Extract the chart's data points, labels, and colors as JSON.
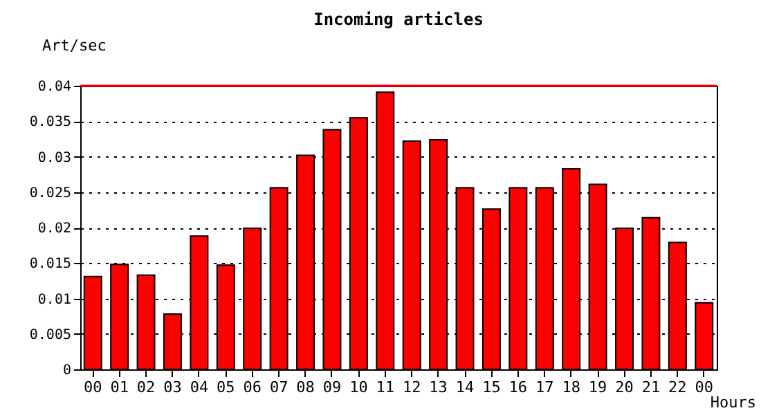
{
  "chart_data": {
    "type": "bar",
    "title": "Incoming articles",
    "xlabel": "Hours",
    "ylabel": "Art/sec",
    "categories": [
      "00",
      "01",
      "02",
      "03",
      "04",
      "05",
      "06",
      "07",
      "08",
      "09",
      "10",
      "11",
      "12",
      "13",
      "14",
      "15",
      "16",
      "17",
      "18",
      "19",
      "20",
      "21",
      "22",
      "00"
    ],
    "values": [
      0.0131,
      0.0148,
      0.0133,
      0.0078,
      0.0188,
      0.0147,
      0.0199,
      0.0256,
      0.0302,
      0.0338,
      0.0355,
      0.0391,
      0.0322,
      0.0324,
      0.0256,
      0.0226,
      0.0256,
      0.0256,
      0.0283,
      0.0261,
      0.0199,
      0.0214,
      0.0179,
      0.0094
    ],
    "color": "#ff0000",
    "ylim": [
      0,
      0.04
    ],
    "yticks": [
      0,
      0.005,
      0.01,
      0.015,
      0.02,
      0.025,
      0.03,
      0.035,
      0.04
    ],
    "grid": "y",
    "ref_lines": [
      {
        "axis": "y",
        "value": 0.04,
        "color": "#ff0000"
      }
    ]
  }
}
